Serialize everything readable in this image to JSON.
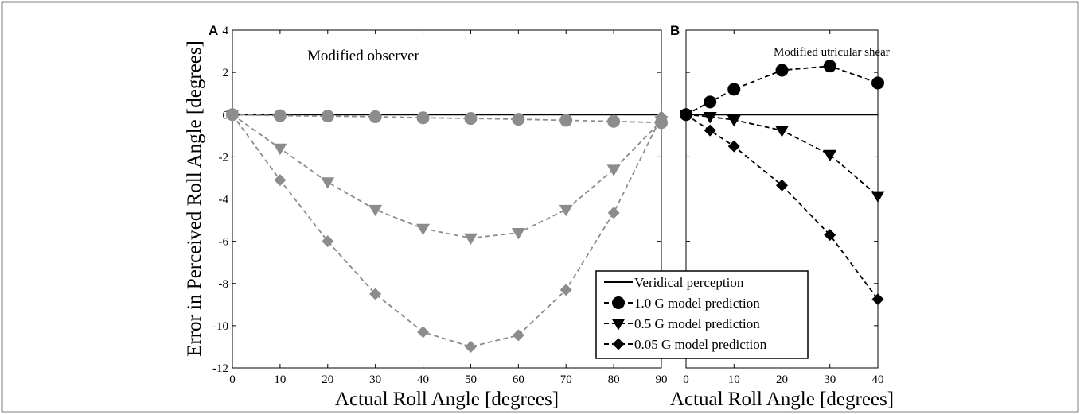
{
  "figure": {
    "ylabel": "Error in Perceived Roll Angle [degrees]"
  },
  "chart_data": [
    {
      "panel": "A",
      "type": "line",
      "annotation": "Modified observer",
      "xlabel": "Actual Roll Angle [degrees]",
      "ylabel": "Error in Perceived Roll Angle [degrees]",
      "xlim": [
        0,
        90
      ],
      "ylim": [
        -12,
        4
      ],
      "xticks": [
        0,
        10,
        20,
        30,
        40,
        50,
        60,
        70,
        80,
        90
      ],
      "yticks": [
        -12,
        -10,
        -8,
        -6,
        -4,
        -2,
        0,
        2,
        4
      ],
      "grid": false,
      "x": [
        0,
        10,
        20,
        30,
        40,
        50,
        60,
        70,
        80,
        90
      ],
      "series": [
        {
          "name": "Veridical perception",
          "marker": "none",
          "style": "solid",
          "color": "#000000",
          "values": [
            0,
            0,
            0,
            0,
            0,
            0,
            0,
            0,
            0,
            0
          ]
        },
        {
          "name": "1.0 G model prediction",
          "marker": "circle",
          "style": "dashed",
          "color": "#8c8c8c",
          "values": [
            0,
            -0.05,
            -0.07,
            -0.1,
            -0.15,
            -0.18,
            -0.22,
            -0.27,
            -0.32,
            -0.38
          ]
        },
        {
          "name": "0.5 G model prediction",
          "marker": "triangle-down",
          "style": "dashed",
          "color": "#8c8c8c",
          "values": [
            0,
            -1.6,
            -3.2,
            -4.5,
            -5.4,
            -5.85,
            -5.6,
            -4.5,
            -2.6,
            -0.3
          ]
        },
        {
          "name": "0.05 G model prediction",
          "marker": "diamond",
          "style": "dashed",
          "color": "#8c8c8c",
          "values": [
            0,
            -3.1,
            -6.0,
            -8.5,
            -10.3,
            -11.0,
            -10.45,
            -8.3,
            -4.65,
            -0.1
          ]
        }
      ]
    },
    {
      "panel": "B",
      "type": "line",
      "annotation": "Modified utricular shear",
      "xlabel": "Actual Roll Angle [degrees]",
      "xlim": [
        0,
        40
      ],
      "ylim": [
        -12,
        4
      ],
      "xticks": [
        0,
        10,
        20,
        30,
        40
      ],
      "grid": false,
      "x": [
        0,
        5,
        10,
        20,
        30,
        40
      ],
      "series": [
        {
          "name": "Veridical perception",
          "marker": "none",
          "style": "solid",
          "color": "#000000",
          "values": [
            0,
            0,
            0,
            0,
            0,
            0
          ]
        },
        {
          "name": "1.0 G model prediction",
          "marker": "circle",
          "style": "dashed",
          "color": "#000000",
          "values": [
            0,
            0.6,
            1.2,
            2.1,
            2.3,
            1.5
          ]
        },
        {
          "name": "0.5 G model prediction",
          "marker": "triangle-down",
          "style": "dashed",
          "color": "#000000",
          "values": [
            0,
            -0.1,
            -0.25,
            -0.75,
            -1.9,
            -3.85
          ]
        },
        {
          "name": "0.05 G model prediction",
          "marker": "diamond",
          "style": "dashed",
          "color": "#000000",
          "values": [
            0,
            -0.75,
            -1.5,
            -3.35,
            -5.7,
            -8.75
          ]
        }
      ],
      "legend": {
        "placement": "bottom-left",
        "entries": [
          {
            "label": "Veridical perception",
            "marker": "none",
            "style": "solid"
          },
          {
            "label": "1.0 G model prediction",
            "marker": "circle",
            "style": "dashed"
          },
          {
            "label": "0.5 G model prediction",
            "marker": "triangle-down",
            "style": "dashed"
          },
          {
            "label": "0.05 G model prediction",
            "marker": "diamond",
            "style": "dashed"
          }
        ]
      }
    }
  ]
}
